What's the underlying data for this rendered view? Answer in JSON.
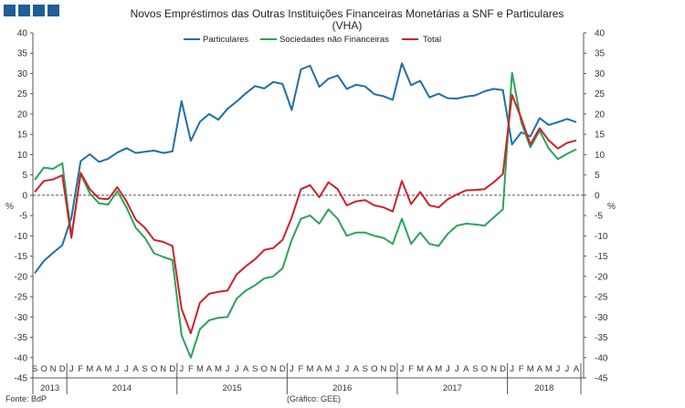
{
  "logo": {
    "name": "bank-logo-squares"
  },
  "chart_data": {
    "type": "line",
    "title_line1": "Novos Empréstimos das Outras Instituições Financeiras Monetárias a SNF e Particulares",
    "title_line2": "(VHA)",
    "ylabel_left": "%",
    "ylabel_right": "%",
    "ylim": [
      -45,
      40
    ],
    "yticks": [
      40,
      35,
      30,
      25,
      20,
      15,
      10,
      5,
      0,
      -5,
      -10,
      -15,
      -20,
      -25,
      -30,
      -35,
      -40,
      -45
    ],
    "ytick_labels_left": [
      "40",
      "35",
      "30",
      "25",
      "20",
      "15",
      "10",
      "5",
      "0",
      "-5",
      "-10",
      "-15",
      "-20",
      "-25",
      "-30",
      "-35",
      "-40",
      "-45"
    ],
    "ytick_labels_right": [
      "40",
      "35",
      "30",
      "25",
      "20",
      "15",
      "10",
      "5",
      "0",
      "-5",
      "-10",
      "-15",
      "-20",
      "-25",
      "-30",
      "-35",
      "-40",
      "-45"
    ],
    "months": [
      "S",
      "O",
      "N",
      "D",
      "J",
      "F",
      "M",
      "A",
      "M",
      "J",
      "J",
      "A",
      "S",
      "O",
      "N",
      "D",
      "J",
      "F",
      "M",
      "A",
      "M",
      "J",
      "J",
      "A",
      "S",
      "O",
      "N",
      "D",
      "J",
      "F",
      "M",
      "A",
      "M",
      "J",
      "J",
      "A",
      "S",
      "O",
      "N",
      "D",
      "J",
      "F",
      "M",
      "A",
      "M",
      "J",
      "J",
      "A",
      "S",
      "O",
      "N",
      "D",
      "J",
      "F",
      "M",
      "A",
      "M",
      "J",
      "J",
      "A"
    ],
    "years": [
      {
        "label": "2013",
        "start": 0,
        "end": 4
      },
      {
        "label": "2014",
        "start": 4,
        "end": 16
      },
      {
        "label": "2015",
        "start": 16,
        "end": 28
      },
      {
        "label": "2016",
        "start": 28,
        "end": 40
      },
      {
        "label": "2017",
        "start": 40,
        "end": 52
      },
      {
        "label": "2018",
        "start": 52,
        "end": 60
      }
    ],
    "series": [
      {
        "name": "Particulares",
        "color": "#1f6fa8",
        "values": [
          -19.2,
          -16.2,
          -14.2,
          -12.3,
          -5.5,
          8.4,
          10.1,
          8.2,
          9.0,
          10.5,
          11.6,
          10.4,
          10.7,
          11.0,
          10.4,
          10.8,
          23.2,
          13.4,
          18.1,
          20.0,
          18.6,
          21.3,
          23.1,
          25.1,
          26.9,
          26.3,
          27.9,
          27.4,
          21.0,
          31.0,
          31.9,
          26.7,
          28.7,
          29.5,
          26.2,
          27.2,
          26.8,
          24.9,
          24.4,
          23.5,
          32.5,
          27.1,
          28.2,
          24.1,
          25.0,
          23.9,
          23.8,
          24.3,
          24.6,
          25.6,
          26.2,
          25.9,
          12.5,
          15.5,
          14.5,
          19.0,
          17.3,
          18.0,
          18.8,
          18.0
        ]
      },
      {
        "name": "Sociedades não Financeiras",
        "color": "#2ca35a",
        "values": [
          3.8,
          6.8,
          6.5,
          7.9,
          -10.0,
          5.2,
          0.5,
          -2.0,
          -2.3,
          1.0,
          -3.0,
          -8.0,
          -10.5,
          -14.3,
          -15.2,
          -16.0,
          -34.5,
          -40.0,
          -33.0,
          -30.8,
          -30.2,
          -30.0,
          -25.5,
          -23.5,
          -22.2,
          -20.5,
          -20.0,
          -18.0,
          -11.0,
          -5.8,
          -5.0,
          -7.0,
          -3.5,
          -5.8,
          -10.0,
          -9.2,
          -9.2,
          -10.0,
          -10.5,
          -12.0,
          -5.8,
          -12.0,
          -9.2,
          -12.0,
          -12.5,
          -9.5,
          -7.5,
          -7.0,
          -7.2,
          -7.5,
          -5.5,
          -3.5,
          30.2,
          18.0,
          11.8,
          15.9,
          11.5,
          8.9,
          10.2,
          11.3
        ]
      },
      {
        "name": "Total",
        "color": "#cc2229",
        "values": [
          0.8,
          3.5,
          3.9,
          4.9,
          -10.5,
          5.5,
          1.5,
          -0.8,
          -1.0,
          2.0,
          -1.5,
          -6.0,
          -8.0,
          -11.0,
          -11.5,
          -12.5,
          -28.0,
          -34.0,
          -26.5,
          -24.3,
          -23.8,
          -23.5,
          -19.5,
          -17.5,
          -15.8,
          -13.5,
          -13.0,
          -11.0,
          -5.5,
          1.5,
          2.5,
          -0.5,
          3.2,
          1.5,
          -2.5,
          -1.5,
          -1.2,
          -2.5,
          -3.0,
          -4.0,
          3.5,
          -2.2,
          0.8,
          -2.5,
          -3.0,
          -1.0,
          0.2,
          1.2,
          1.3,
          1.5,
          3.2,
          5.2,
          24.7,
          19.0,
          12.5,
          16.5,
          13.5,
          11.5,
          12.9,
          13.5
        ]
      }
    ],
    "legend": [
      "Particulares",
      "Sociedades não Financeiras",
      "Total"
    ],
    "legend_position": "top-center"
  },
  "footer": {
    "source": "Fonte: BdP",
    "graph_label": "(Gráfico: GEE)"
  }
}
